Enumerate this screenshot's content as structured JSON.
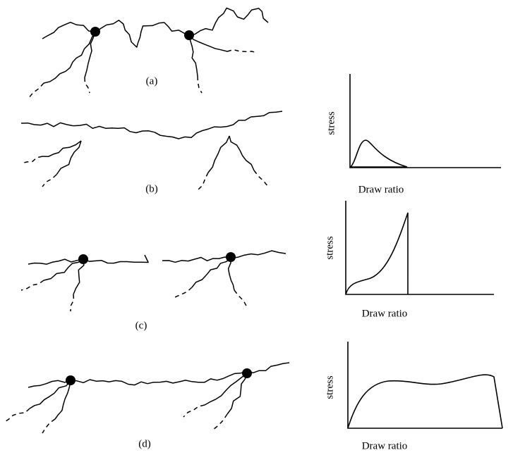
{
  "panels": [
    {
      "label": "(a)"
    },
    {
      "label": "(b)"
    },
    {
      "label": "(c)"
    },
    {
      "label": "(d)"
    }
  ],
  "graphs": [
    {
      "y_label": "stress",
      "x_label": "Draw ratio"
    },
    {
      "y_label": "stress",
      "x_label": "Draw ratio"
    },
    {
      "y_label": "stress",
      "x_label": "Draw ratio"
    }
  ]
}
